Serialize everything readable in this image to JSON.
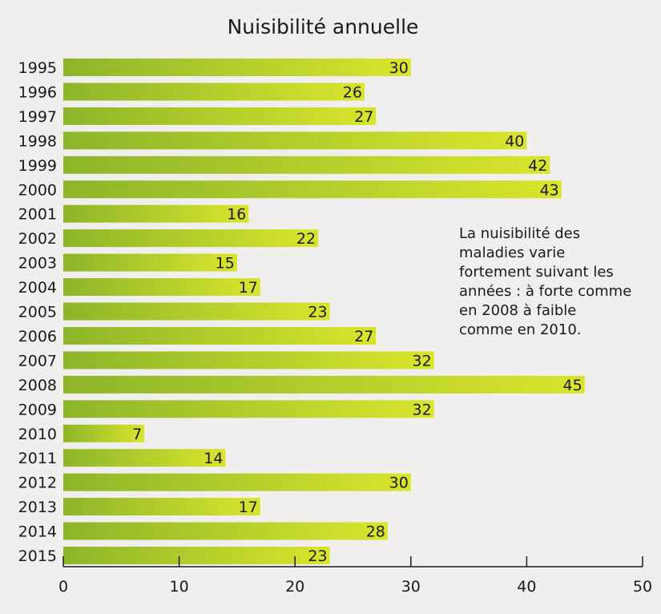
{
  "chart_data": {
    "type": "bar",
    "orientation": "horizontal",
    "title": "Nuisibilité annuelle",
    "categories": [
      "1995",
      "1996",
      "1997",
      "1998",
      "1999",
      "2000",
      "2001",
      "2002",
      "2003",
      "2004",
      "2005",
      "2006",
      "2007",
      "2008",
      "2009",
      "2010",
      "2011",
      "2012",
      "2013",
      "2014",
      "2015"
    ],
    "values": [
      30,
      26,
      27,
      40,
      42,
      43,
      16,
      22,
      15,
      17,
      23,
      27,
      32,
      45,
      32,
      7,
      14,
      30,
      17,
      28,
      23
    ],
    "xlim": [
      0,
      50
    ],
    "xticks": [
      0,
      10,
      20,
      30,
      40,
      50
    ],
    "xlabel": "",
    "ylabel": "",
    "grid": false,
    "data_labels": true,
    "colors": {
      "bar_start": "#8db52a",
      "bar_end": "#d9e52c",
      "text": "#1a1a1a",
      "background": "#f0efed"
    },
    "annotation": [
      "La nuisibilité des",
      "maladies varie",
      "fortement suivant les",
      "années : à forte comme",
      "en 2008 à faible",
      "comme en 2010."
    ]
  }
}
